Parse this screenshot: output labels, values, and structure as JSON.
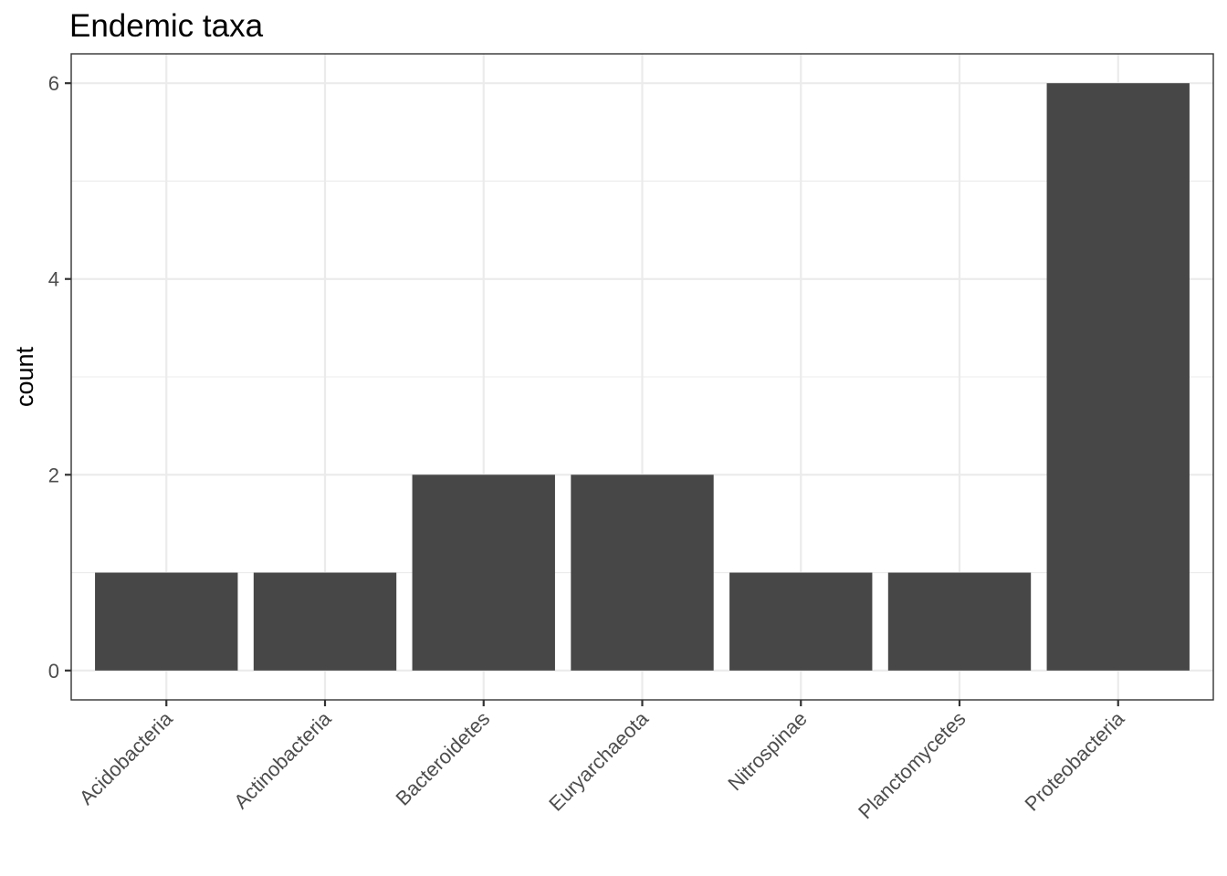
{
  "chart_data": {
    "type": "bar",
    "title": "Endemic taxa",
    "xlabel": "",
    "ylabel": "count",
    "categories": [
      "Acidobacteria",
      "Actinobacteria",
      "Bacteroidetes",
      "Euryarchaeota",
      "Nitrospinae",
      "Planctomycetes",
      "Proteobacteria"
    ],
    "values": [
      1,
      1,
      2,
      2,
      1,
      1,
      6
    ],
    "ylim": [
      -0.3,
      6.3
    ],
    "yticks": [
      "0",
      "2",
      "4",
      "6"
    ],
    "grid": true,
    "bar_color": "#474747"
  }
}
